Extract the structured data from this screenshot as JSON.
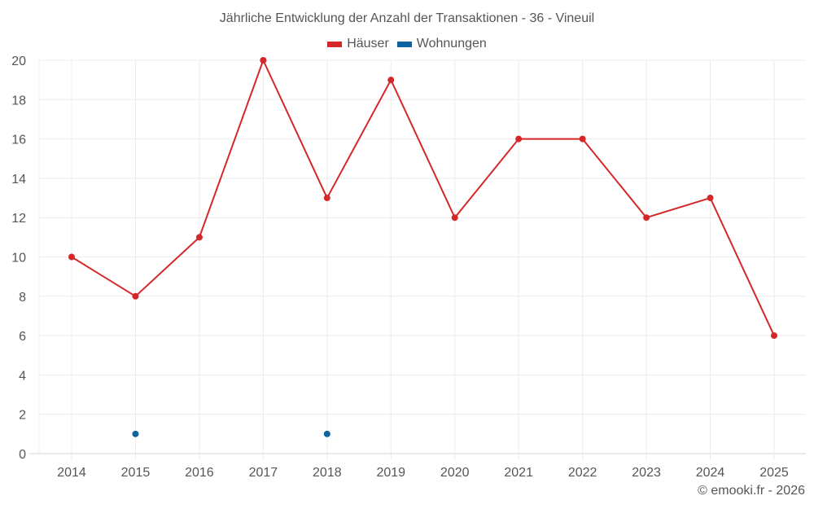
{
  "chart_data": {
    "type": "line",
    "title": "Jährliche Entwicklung der Anzahl der Transaktionen - 36 - Vineuil",
    "xlabel": "",
    "ylabel": "",
    "categories": [
      "2014",
      "2015",
      "2016",
      "2017",
      "2018",
      "2019",
      "2020",
      "2021",
      "2022",
      "2023",
      "2024",
      "2025"
    ],
    "series": [
      {
        "name": "Häuser",
        "color": "#d62728",
        "values": [
          10,
          8,
          11,
          20,
          13,
          19,
          12,
          16,
          16,
          12,
          13,
          6
        ]
      },
      {
        "name": "Wohnungen",
        "color": "#0e64a0",
        "values": [
          null,
          1,
          null,
          null,
          1,
          null,
          null,
          null,
          null,
          null,
          null,
          null
        ]
      }
    ],
    "ylim": [
      0,
      20
    ],
    "yticks": [
      0,
      2,
      4,
      6,
      8,
      10,
      12,
      14,
      16,
      18,
      20
    ],
    "grid": true,
    "legend_position": "top"
  },
  "header": {
    "title": "Jährliche Entwicklung der Anzahl der Transaktionen - 36 - Vineuil"
  },
  "legend": [
    {
      "label": "Häuser",
      "color": "#d62728"
    },
    {
      "label": "Wohnungen",
      "color": "#0e64a0"
    }
  ],
  "footer": {
    "credit": "© emooki.fr - 2026"
  }
}
